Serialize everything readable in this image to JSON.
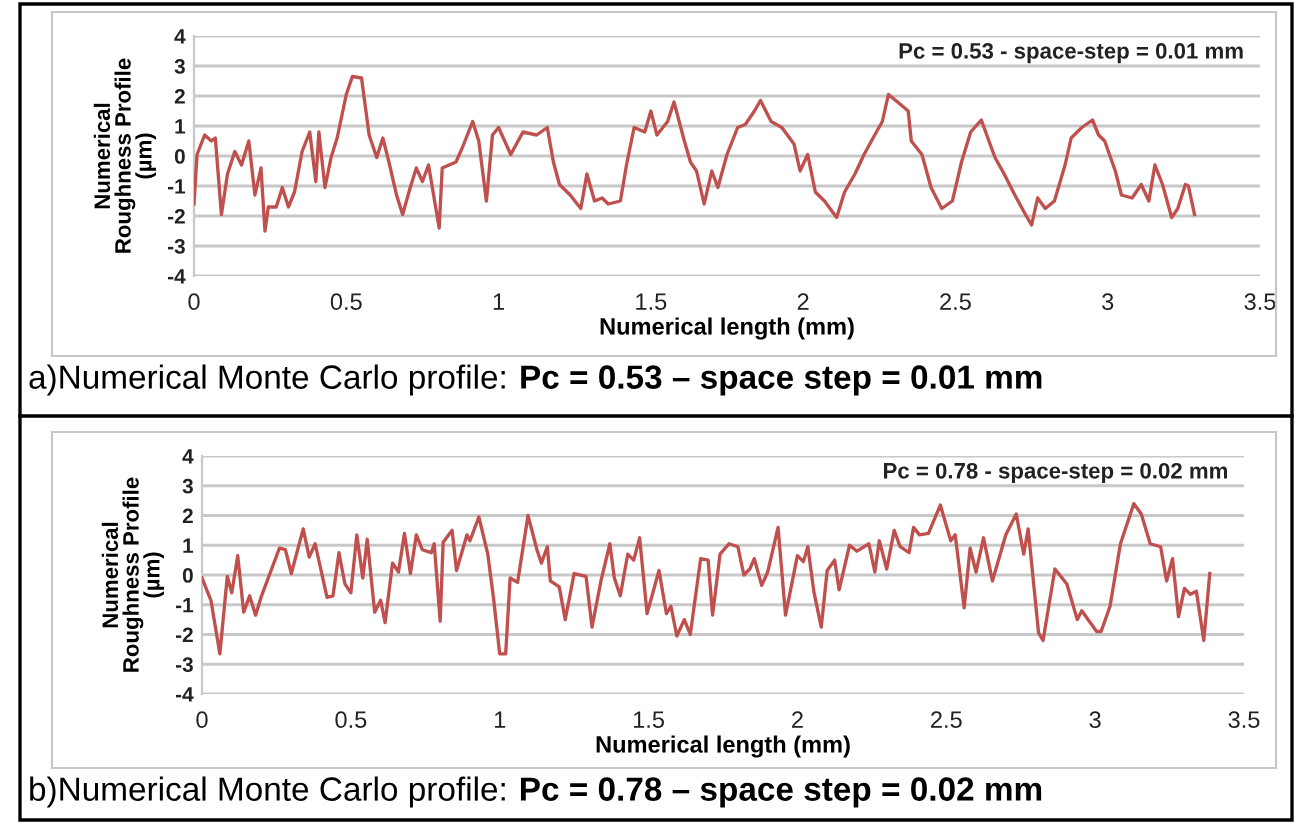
{
  "chart_data": [
    {
      "type": "line",
      "xlabel": "Numerical length (mm)",
      "ylabel": "Numerical\nRoughness Profile\n(µm)",
      "xlim": [
        0,
        3.5
      ],
      "ylim": [
        -4,
        4
      ],
      "xticks": [
        0,
        0.5,
        1,
        1.5,
        2,
        2.5,
        3,
        3.5
      ],
      "yticks": [
        -4,
        -3,
        -2,
        -1,
        0,
        1,
        2,
        3,
        4
      ],
      "grid": "y",
      "annotations": [
        "Pc = 0.53 - space-step = 0.01 mm",
        "a)Numerical Monte Carlo profile: ",
        "Pc = 0.53 – space step = 0.01 mm"
      ],
      "series": [
        {
          "color": "#c0504d",
          "x": [
            0,
            0.01,
            0.035,
            0.057,
            0.07,
            0.09,
            0.11,
            0.134,
            0.156,
            0.18,
            0.2,
            0.22,
            0.233,
            0.244,
            0.27,
            0.29,
            0.31,
            0.33,
            0.355,
            0.38,
            0.4,
            0.41,
            0.43,
            0.45,
            0.47,
            0.5,
            0.52,
            0.55,
            0.575,
            0.6,
            0.62,
            0.64,
            0.665,
            0.685,
            0.71,
            0.73,
            0.75,
            0.77,
            0.805,
            0.815,
            0.86,
            0.88,
            0.915,
            0.935,
            0.96,
            0.98,
            1.0,
            1.04,
            1.08,
            1.125,
            1.16,
            1.18,
            1.2,
            1.235,
            1.27,
            1.29,
            1.315,
            1.34,
            1.36,
            1.4,
            1.42,
            1.445,
            1.48,
            1.5,
            1.52,
            1.555,
            1.576,
            1.61,
            1.63,
            1.65,
            1.675,
            1.7,
            1.72,
            1.75,
            1.785,
            1.81,
            1.84,
            1.86,
            1.895,
            1.93,
            1.97,
            1.99,
            2.015,
            2.04,
            2.07,
            2.11,
            2.136,
            2.17,
            2.2,
            2.235,
            2.26,
            2.28,
            2.31,
            2.345,
            2.355,
            2.39,
            2.42,
            2.455,
            2.49,
            2.52,
            2.55,
            2.585,
            2.61,
            2.63,
            2.66,
            2.695,
            2.73,
            2.75,
            2.77,
            2.795,
            2.825,
            2.86,
            2.88,
            2.915,
            2.95,
            2.97,
            2.99,
            3.025,
            3.045,
            3.08,
            3.11,
            3.135,
            3.155,
            3.18,
            3.21,
            3.23,
            3.255,
            3.265,
            3.285
          ],
          "values": [
            -1.6,
            0.05,
            0.7,
            0.5,
            0.6,
            -1.95,
            -0.6,
            0.15,
            -0.3,
            0.5,
            -1.3,
            -0.4,
            -2.5,
            -1.7,
            -1.7,
            -1.05,
            -1.7,
            -1.2,
            0.15,
            0.8,
            -0.85,
            0.8,
            -1.05,
            -0.05,
            0.6,
            2.05,
            2.65,
            2.6,
            0.7,
            -0.05,
            0.6,
            -0.2,
            -1.3,
            -1.95,
            -1.05,
            -0.4,
            -0.85,
            -0.3,
            -2.4,
            -0.4,
            -0.2,
            0.25,
            1.15,
            0.5,
            -1.5,
            0.7,
            0.95,
            0.05,
            0.8,
            0.7,
            0.95,
            -0.2,
            -0.95,
            -1.3,
            -1.75,
            -0.6,
            -1.5,
            -1.4,
            -1.6,
            -1.5,
            -0.3,
            0.95,
            0.8,
            1.5,
            0.7,
            1.15,
            1.8,
            0.5,
            -0.2,
            -0.5,
            -1.6,
            -0.5,
            -1.05,
            0.05,
            0.95,
            1.05,
            1.5,
            1.85,
            1.15,
            0.95,
            0.4,
            -0.5,
            0.05,
            -1.2,
            -1.5,
            -2.05,
            -1.2,
            -0.6,
            0.05,
            0.7,
            1.15,
            2.05,
            1.8,
            1.5,
            0.5,
            0.05,
            -1.05,
            -1.75,
            -1.5,
            -0.2,
            0.8,
            1.2,
            0.5,
            -0.05,
            -0.6,
            -1.3,
            -1.95,
            -2.3,
            -1.4,
            -1.75,
            -1.5,
            -0.3,
            0.6,
            0.95,
            1.2,
            0.7,
            0.5,
            -0.5,
            -1.3,
            -1.4,
            -0.95,
            -1.5,
            -0.3,
            -0.95,
            -2.05,
            -1.75,
            -0.95,
            -1.0,
            -1.95
          ]
        }
      ]
    },
    {
      "type": "line",
      "xlabel": "Numerical length (mm)",
      "ylabel": "Numerical\nRoughness Profile\n(µm)",
      "xlim": [
        0,
        3.5
      ],
      "ylim": [
        -4,
        4
      ],
      "xticks": [
        0,
        0.5,
        1,
        1.5,
        2,
        2.5,
        3,
        3.5
      ],
      "yticks": [
        -4,
        -3,
        -2,
        -1,
        0,
        1,
        2,
        3,
        4
      ],
      "grid": "y",
      "annotations": [
        "Pc = 0.78 - space-step = 0.02 mm",
        "b)Numerical Monte Carlo profile: ",
        "Pc = 0.78 – space step = 0.02 mm"
      ],
      "series": [
        {
          "color": "#c0504d",
          "x": [
            0,
            0.03,
            0.06,
            0.085,
            0.1,
            0.12,
            0.14,
            0.16,
            0.18,
            0.2,
            0.26,
            0.28,
            0.3,
            0.34,
            0.36,
            0.38,
            0.42,
            0.44,
            0.46,
            0.48,
            0.5,
            0.52,
            0.54,
            0.555,
            0.58,
            0.6,
            0.615,
            0.64,
            0.66,
            0.68,
            0.7,
            0.72,
            0.74,
            0.77,
            0.78,
            0.8,
            0.81,
            0.84,
            0.855,
            0.89,
            0.9,
            0.93,
            0.96,
            0.98,
            1.0,
            1.02,
            1.035,
            1.06,
            1.095,
            1.125,
            1.14,
            1.16,
            1.17,
            1.2,
            1.22,
            1.25,
            1.29,
            1.31,
            1.34,
            1.37,
            1.385,
            1.405,
            1.43,
            1.45,
            1.47,
            1.495,
            1.535,
            1.56,
            1.575,
            1.595,
            1.62,
            1.64,
            1.675,
            1.7,
            1.715,
            1.74,
            1.77,
            1.8,
            1.82,
            1.84,
            1.855,
            1.88,
            1.9,
            1.935,
            1.96,
            2.0,
            2.02,
            2.035,
            2.055,
            2.08,
            2.1,
            2.125,
            2.14,
            2.175,
            2.2,
            2.24,
            2.26,
            2.275,
            2.3,
            2.325,
            2.345,
            2.375,
            2.39,
            2.41,
            2.44,
            2.48,
            2.515,
            2.53,
            2.56,
            2.58,
            2.6,
            2.625,
            2.655,
            2.7,
            2.735,
            2.76,
            2.775,
            2.81,
            2.825,
            2.865,
            2.905,
            2.94,
            2.955,
            3.005,
            3.02,
            3.05,
            3.085,
            3.13,
            3.155,
            3.185,
            3.22,
            3.24,
            3.26,
            3.28,
            3.3,
            3.32,
            3.34,
            3.365,
            3.385
          ],
          "values": [
            -0.1,
            -0.85,
            -2.65,
            -0.05,
            -0.6,
            0.65,
            -1.25,
            -0.7,
            -1.35,
            -0.7,
            0.9,
            0.85,
            0.05,
            1.55,
            0.6,
            1.05,
            -0.75,
            -0.7,
            0.75,
            -0.3,
            -0.6,
            1.35,
            -0.1,
            1.2,
            -1.25,
            -0.85,
            -1.6,
            0.4,
            0.1,
            1.4,
            0.05,
            1.35,
            0.85,
            0.75,
            1.05,
            -1.55,
            1.1,
            1.5,
            0.15,
            1.35,
            1.15,
            1.95,
            0.7,
            -0.85,
            -2.65,
            -2.65,
            -0.1,
            -0.25,
            2.0,
            0.85,
            0.4,
            0.95,
            -0.2,
            -0.4,
            -1.5,
            0.05,
            -0.05,
            -1.75,
            -0.2,
            1.05,
            -0.1,
            -0.7,
            0.7,
            0.5,
            1.25,
            -1.3,
            0.15,
            -1.3,
            -1.05,
            -2.05,
            -1.5,
            -2.0,
            0.55,
            0.5,
            -1.35,
            0.7,
            1.05,
            0.95,
            0,
            0.2,
            0.55,
            -0.35,
            0.1,
            1.6,
            -1.35,
            0.65,
            0.45,
            0.95,
            -0.55,
            -1.75,
            0.15,
            0.5,
            -0.5,
            1.0,
            0.8,
            1.05,
            0.1,
            1.15,
            0.2,
            1.5,
            0.95,
            0.75,
            1.6,
            1.35,
            1.4,
            2.35,
            1.15,
            1.35,
            -1.1,
            0.9,
            0.1,
            1.25,
            -0.2,
            1.35,
            2.05,
            0.7,
            1.55,
            -1.95,
            -2.2,
            0.2,
            -0.3,
            -1.5,
            -1.2,
            -1.9,
            -1.9,
            -1.05,
            1.05,
            2.4,
            2.05,
            1.05,
            0.95,
            -0.2,
            0.55,
            -1.4,
            -0.45,
            -0.65,
            -0.55,
            -2.2,
            0.05
          ]
        }
      ]
    }
  ]
}
